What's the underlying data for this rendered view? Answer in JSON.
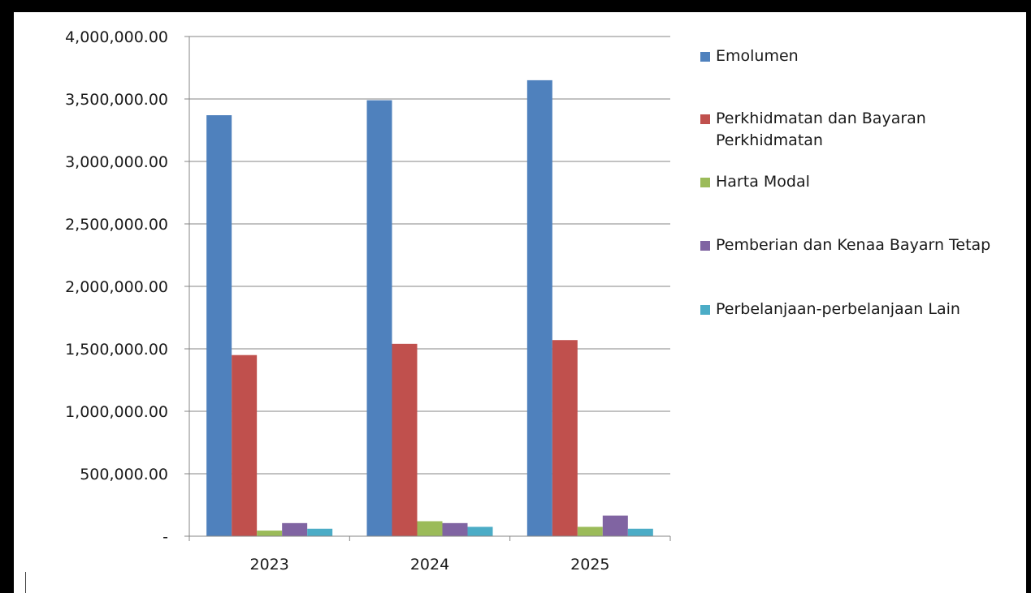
{
  "chart_data": {
    "type": "bar",
    "categories": [
      "2023",
      "2024",
      "2025"
    ],
    "series": [
      {
        "name": "Emolumen",
        "color": "#4F81BD",
        "values": [
          3370000,
          3490000,
          3650000
        ]
      },
      {
        "name": "Perkhidmatan dan Bayaran Perkhidmatan",
        "color": "#C0504D",
        "values": [
          1450000,
          1540000,
          1570000
        ]
      },
      {
        "name": "Harta Modal",
        "color": "#9BBB59",
        "values": [
          45000,
          120000,
          75000
        ]
      },
      {
        "name": "Pemberian dan Kenaa Bayarn Tetap",
        "color": "#8064A2",
        "values": [
          105000,
          105000,
          165000
        ]
      },
      {
        "name": "Perbelanjaan-perbelanjaan Lain",
        "color": "#4BACC6",
        "values": [
          60000,
          75000,
          60000
        ]
      }
    ],
    "ylim": [
      0,
      4000000
    ],
    "yticks": [
      0,
      500000,
      1000000,
      1500000,
      2000000,
      2500000,
      3000000,
      3500000,
      4000000
    ],
    "ytick_labels": [
      "-",
      "500,000.00",
      "1,000,000.00",
      "1,500,000.00",
      "2,000,000.00",
      "2,500,000.00",
      "3,000,000.00",
      "3,500,000.00",
      "4,000,000.00"
    ],
    "grid": true,
    "legend_position": "right",
    "title": "",
    "xlabel": "",
    "ylabel": ""
  }
}
